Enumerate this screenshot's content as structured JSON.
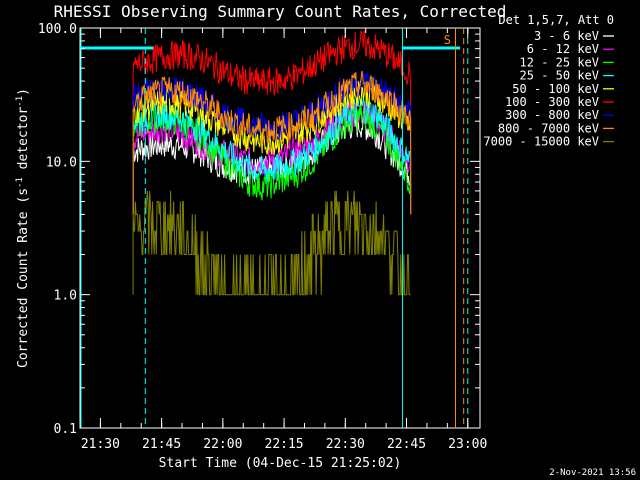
{
  "chart_data": {
    "type": "line",
    "title": "RHESSI Observing Summary Count Rates, Corrected",
    "xlabel": "Start Time (04-Dec-15 21:25:02)",
    "ylabel_main": "Corrected Count Rate (s",
    "ylabel_sup1": "-1",
    "ylabel_mid": " detector",
    "ylabel_sup2": "-1",
    "ylabel_end": ")",
    "y_scale": "log",
    "ylim": [
      0.1,
      100.0
    ],
    "xlim": [
      "21:25",
      "23:03"
    ],
    "y_ticks": [
      "100.0",
      "10.0",
      "1.0",
      "0.1"
    ],
    "x_ticks": [
      "21:30",
      "21:45",
      "22:00",
      "22:15",
      "22:30",
      "22:45",
      "23:00"
    ],
    "legend_title": "Det 1,5,7, Att 0",
    "legend_position": "right",
    "series": [
      {
        "name": "3 - 6 keV",
        "color": "#ffffff",
        "x": [
          "21:38",
          "21:42",
          "21:46",
          "21:50",
          "21:54",
          "21:58",
          "22:02",
          "22:06",
          "22:10",
          "22:14",
          "22:18",
          "22:22",
          "22:26",
          "22:30",
          "22:34",
          "22:38",
          "22:42",
          "22:46"
        ],
        "y": [
          12,
          13,
          13.5,
          13,
          12,
          10,
          9,
          8.5,
          8.5,
          9,
          10,
          12,
          15,
          18,
          19,
          16,
          11,
          8
        ]
      },
      {
        "name": "6 - 12 keV",
        "color": "#ff00ff",
        "x": [
          "21:38",
          "21:42",
          "21:46",
          "21:50",
          "21:54",
          "21:58",
          "22:02",
          "22:06",
          "22:10",
          "22:14",
          "22:18",
          "22:22",
          "22:26",
          "22:30",
          "22:34",
          "22:38",
          "22:42",
          "22:46"
        ],
        "y": [
          15,
          17,
          18,
          16,
          14,
          12,
          11,
          10,
          10,
          10.5,
          12,
          14,
          18,
          22,
          24,
          20,
          14,
          10
        ]
      },
      {
        "name": "12 - 25 keV",
        "color": "#00ff00",
        "x": [
          "21:38",
          "21:42",
          "21:46",
          "21:50",
          "21:54",
          "21:58",
          "22:02",
          "22:06",
          "22:10",
          "22:14",
          "22:18",
          "22:22",
          "22:26",
          "22:30",
          "22:34",
          "22:38",
          "22:42",
          "22:46"
        ],
        "y": [
          18,
          20,
          21,
          19,
          16,
          12,
          9,
          7,
          6.5,
          7,
          8,
          10,
          14,
          19,
          22,
          18,
          12,
          7
        ]
      },
      {
        "name": "25 - 50 keV",
        "color": "#00ffff",
        "x": [
          "21:38",
          "21:42",
          "21:46",
          "21:50",
          "21:54",
          "21:58",
          "22:02",
          "22:06",
          "22:10",
          "22:14",
          "22:18",
          "22:22",
          "22:26",
          "22:30",
          "22:34",
          "22:38",
          "22:42",
          "22:46"
        ],
        "y": [
          20,
          22,
          23,
          21,
          18,
          14,
          11,
          9,
          8.5,
          9,
          10,
          12,
          16,
          22,
          26,
          22,
          15,
          10
        ]
      },
      {
        "name": "50 - 100 keV",
        "color": "#ffff00",
        "x": [
          "21:38",
          "21:42",
          "21:46",
          "21:50",
          "21:54",
          "21:58",
          "22:02",
          "22:06",
          "22:10",
          "22:14",
          "22:18",
          "22:22",
          "22:26",
          "22:30",
          "22:34",
          "22:38",
          "22:42",
          "22:46"
        ],
        "y": [
          24,
          26,
          28,
          27,
          24,
          20,
          17,
          15,
          14,
          14.5,
          16,
          19,
          24,
          30,
          34,
          30,
          24,
          18
        ]
      },
      {
        "name": "100 - 300 keV",
        "color": "#ff0000",
        "x": [
          "21:38",
          "21:42",
          "21:46",
          "21:50",
          "21:54",
          "21:58",
          "22:02",
          "22:06",
          "22:10",
          "22:14",
          "22:18",
          "22:22",
          "22:26",
          "22:30",
          "22:34",
          "22:38",
          "22:42",
          "22:46"
        ],
        "y": [
          52,
          57,
          62,
          63,
          60,
          52,
          44,
          40,
          39,
          40,
          44,
          52,
          62,
          72,
          76,
          70,
          58,
          45
        ]
      },
      {
        "name": "300 - 800 keV",
        "color": "#0000ff",
        "x": [
          "21:38",
          "21:42",
          "21:46",
          "21:50",
          "21:54",
          "21:58",
          "22:02",
          "22:06",
          "22:10",
          "22:14",
          "22:18",
          "22:22",
          "22:26",
          "22:30",
          "22:34",
          "22:38",
          "22:42",
          "22:46"
        ],
        "y": [
          30,
          33,
          36,
          34,
          30,
          25,
          21,
          19,
          18,
          18.5,
          20,
          23,
          29,
          36,
          40,
          36,
          29,
          22
        ]
      },
      {
        "name": "800 - 7000 keV",
        "color": "#ff8c00",
        "x": [
          "21:38",
          "21:42",
          "21:46",
          "21:50",
          "21:54",
          "21:58",
          "22:02",
          "22:06",
          "22:10",
          "22:14",
          "22:18",
          "22:22",
          "22:26",
          "22:30",
          "22:34",
          "22:38",
          "22:42",
          "22:46"
        ],
        "y": [
          28,
          31,
          34,
          33,
          29,
          24,
          20,
          18,
          17,
          17.5,
          19,
          22,
          27,
          34,
          38,
          34,
          27,
          20
        ]
      },
      {
        "name": "7000 - 15000 keV",
        "color": "#808000",
        "x": [
          "21:38",
          "21:42",
          "21:46",
          "21:50",
          "21:54",
          "21:58",
          "22:02",
          "22:06",
          "22:10",
          "22:14",
          "22:18",
          "22:22",
          "22:26",
          "22:30",
          "22:34",
          "22:38",
          "22:42",
          "22:46"
        ],
        "y": [
          3,
          3.5,
          3.5,
          3,
          2,
          1.2,
          1,
          1,
          1,
          1,
          1.2,
          2,
          3,
          3.5,
          3.5,
          3,
          2,
          1
        ]
      }
    ],
    "markers": {
      "s_label": "S"
    }
  },
  "footer": {
    "timestamp": "2-Nov-2021 13:56"
  }
}
